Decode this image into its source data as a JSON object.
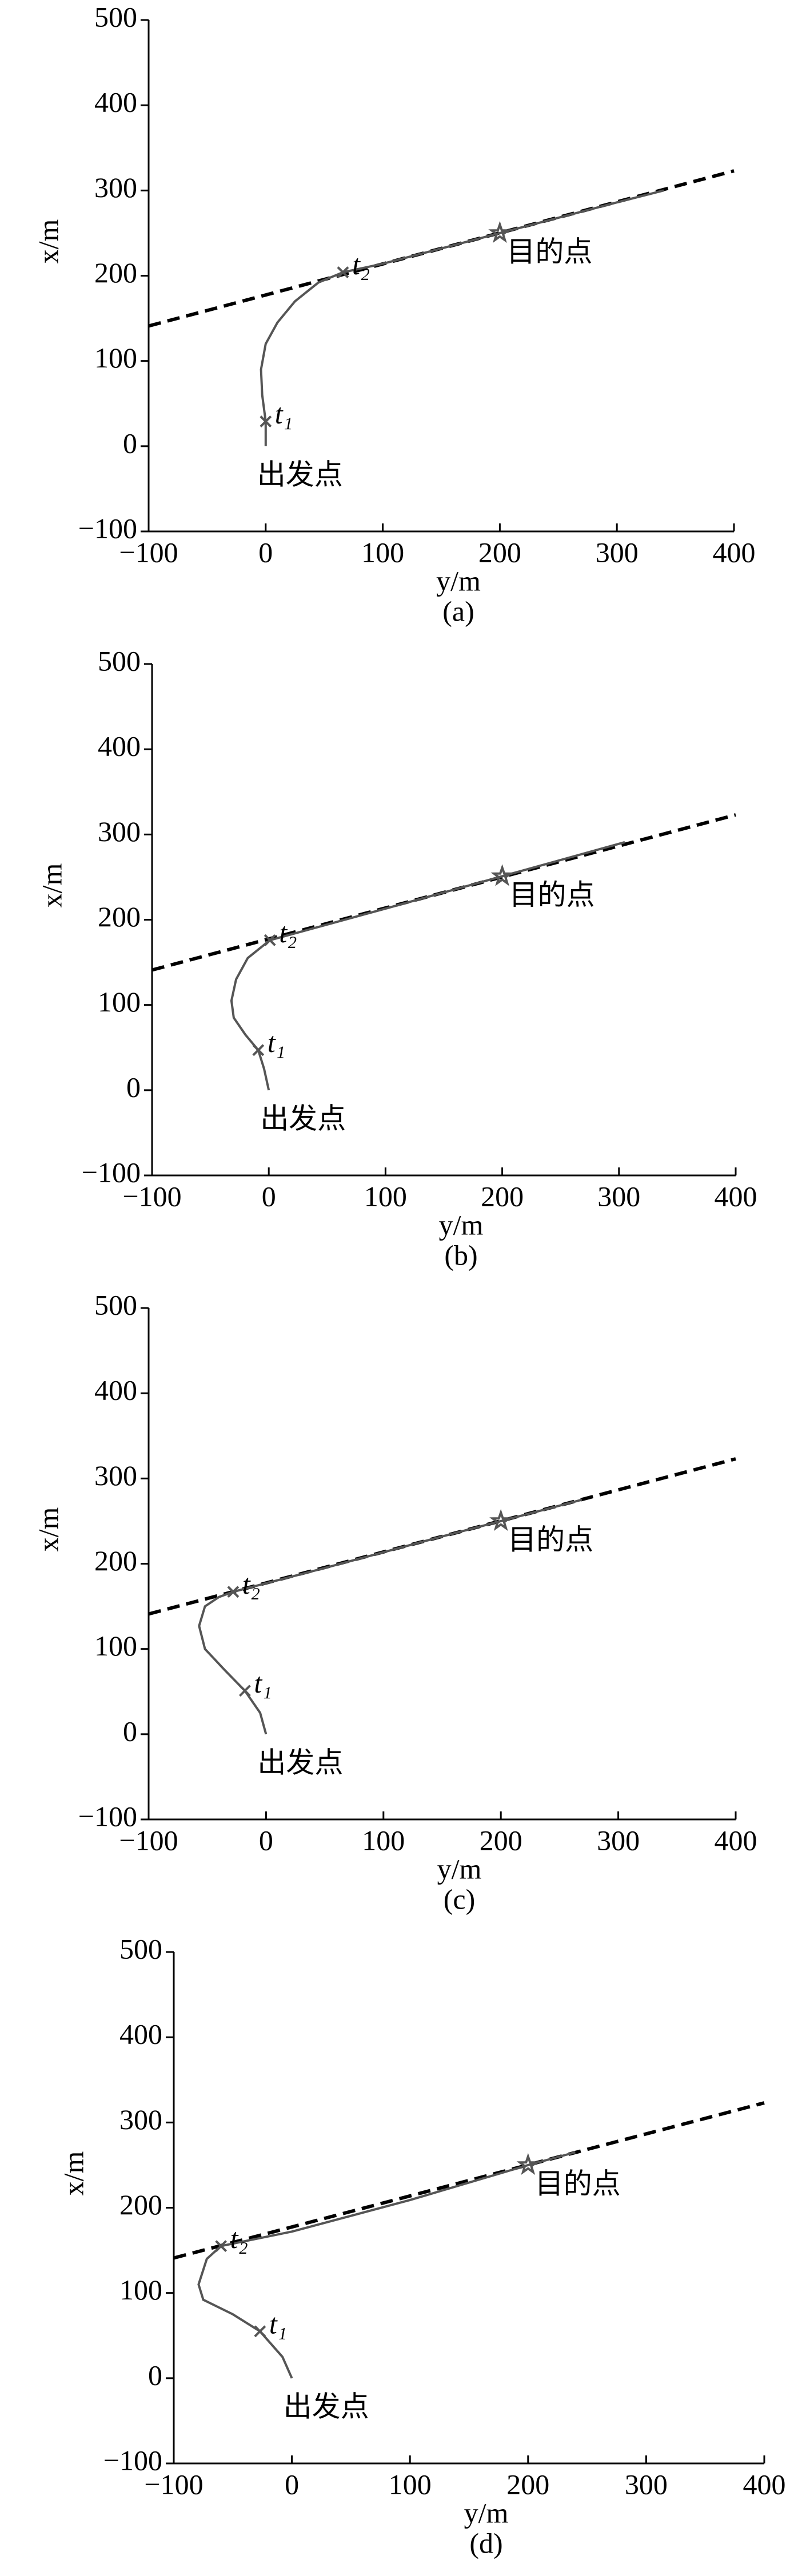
{
  "chart_data": [
    {
      "type": "line",
      "caption": "(a)",
      "xlabel": "y/m",
      "ylabel": "x/m",
      "xlim": [
        -100,
        400
      ],
      "ylim": [
        -100,
        500
      ],
      "xticks": [
        {
          "value": -100,
          "label": "−100"
        },
        0,
        100,
        200,
        300,
        400
      ],
      "yticks": [
        {
          "value": -100,
          "label": "−100"
        },
        0,
        100,
        200,
        300,
        400,
        500
      ],
      "series": [
        {
          "color": "#000000",
          "dash": true,
          "x": [
            -100,
            400
          ],
          "values": [
            141,
            323
          ]
        },
        {
          "color": "#555555",
          "dash": false,
          "x": [
            0,
            0,
            -3,
            -4,
            0,
            10,
            25,
            45,
            66,
            100,
            150,
            200,
            250,
            300,
            340
          ],
          "values": [
            0,
            29,
            60,
            90,
            120,
            145,
            170,
            192,
            204,
            214,
            232,
            250,
            268,
            286,
            300
          ]
        }
      ],
      "points": [
        {
          "label": "出发点",
          "x": 0,
          "y": 0,
          "marker": "none"
        },
        {
          "label": "t₁",
          "x": 0,
          "y": 29,
          "marker": "x"
        },
        {
          "label": "t₂",
          "x": 66,
          "y": 204,
          "marker": "x"
        },
        {
          "label": "目的点",
          "x": 200,
          "y": 250,
          "marker": "star"
        }
      ]
    },
    {
      "type": "line",
      "caption": "(b)",
      "xlabel": "y/m",
      "ylabel": "x/m",
      "xlim": [
        -100,
        400
      ],
      "ylim": [
        -100,
        500
      ],
      "xticks": [
        {
          "value": -100,
          "label": "−100"
        },
        0,
        100,
        200,
        300,
        400
      ],
      "yticks": [
        {
          "value": -100,
          "label": "−100"
        },
        0,
        100,
        200,
        300,
        400,
        500
      ],
      "series": [
        {
          "color": "#000000",
          "dash": true,
          "x": [
            -100,
            400
          ],
          "values": [
            141,
            323
          ]
        },
        {
          "color": "#555555",
          "dash": false,
          "x": [
            0,
            -4,
            -9,
            -20,
            -30,
            -32,
            -28,
            -18,
            1,
            100,
            200,
            305
          ],
          "values": [
            0,
            25,
            47,
            65,
            85,
            105,
            130,
            155,
            176,
            213,
            251,
            291
          ]
        }
      ],
      "points": [
        {
          "label": "出发点",
          "x": 0,
          "y": 0,
          "marker": "none"
        },
        {
          "label": "t₁",
          "x": -9,
          "y": 47,
          "marker": "x"
        },
        {
          "label": "t₂",
          "x": 1,
          "y": 176,
          "marker": "x"
        },
        {
          "label": "目的点",
          "x": 200,
          "y": 251,
          "marker": "star"
        }
      ]
    },
    {
      "type": "line",
      "caption": "(c)",
      "xlabel": "y/m",
      "ylabel": "x/m",
      "xlim": [
        -100,
        400
      ],
      "ylim": [
        -100,
        500
      ],
      "xticks": [
        {
          "value": -100,
          "label": "−100"
        },
        0,
        100,
        200,
        300,
        400
      ],
      "yticks": [
        {
          "value": -100,
          "label": "−100"
        },
        0,
        100,
        200,
        300,
        400,
        500
      ],
      "series": [
        {
          "color": "#000000",
          "dash": true,
          "x": [
            -100,
            400
          ],
          "values": [
            141,
            323
          ]
        },
        {
          "color": "#555555",
          "dash": false,
          "x": [
            0,
            -5,
            -18,
            -35,
            -52,
            -57,
            -52,
            -40,
            -28,
            50,
            150,
            200,
            269
          ],
          "values": [
            0,
            25,
            51,
            75,
            100,
            127,
            150,
            161,
            167,
            195,
            232,
            250,
            275
          ]
        }
      ],
      "points": [
        {
          "label": "出发点",
          "x": 0,
          "y": 0,
          "marker": "none"
        },
        {
          "label": "t₁",
          "x": -18,
          "y": 51,
          "marker": "x"
        },
        {
          "label": "t₂",
          "x": -28,
          "y": 167,
          "marker": "x"
        },
        {
          "label": "目的点",
          "x": 200,
          "y": 250,
          "marker": "star"
        }
      ]
    },
    {
      "type": "line",
      "caption": "(d)",
      "xlabel": "y/m",
      "ylabel": "x/m",
      "xlim": [
        -100,
        400
      ],
      "ylim": [
        -100,
        500
      ],
      "xticks": [
        {
          "value": -100,
          "label": "−100"
        },
        0,
        100,
        200,
        300,
        400
      ],
      "yticks": [
        {
          "value": -100,
          "label": "−100"
        },
        0,
        100,
        200,
        300,
        400,
        500
      ],
      "series": [
        {
          "color": "#000000",
          "dash": true,
          "x": [
            -100,
            400
          ],
          "values": [
            141,
            323
          ]
        },
        {
          "color": "#555555",
          "dash": false,
          "x": [
            0,
            -8,
            -27,
            -50,
            -75,
            -79,
            -72,
            -60,
            0,
            100,
            200,
            240
          ],
          "values": [
            0,
            25,
            55,
            75,
            92,
            110,
            140,
            155,
            172,
            209,
            250,
            265
          ]
        }
      ],
      "points": [
        {
          "label": "出发点",
          "x": 0,
          "y": 0,
          "marker": "none"
        },
        {
          "label": "t₁",
          "x": -27,
          "y": 55,
          "marker": "x"
        },
        {
          "label": "t₂",
          "x": -60,
          "y": 155,
          "marker": "x"
        },
        {
          "label": "目的点",
          "x": 200,
          "y": 250,
          "marker": "star"
        }
      ]
    }
  ]
}
